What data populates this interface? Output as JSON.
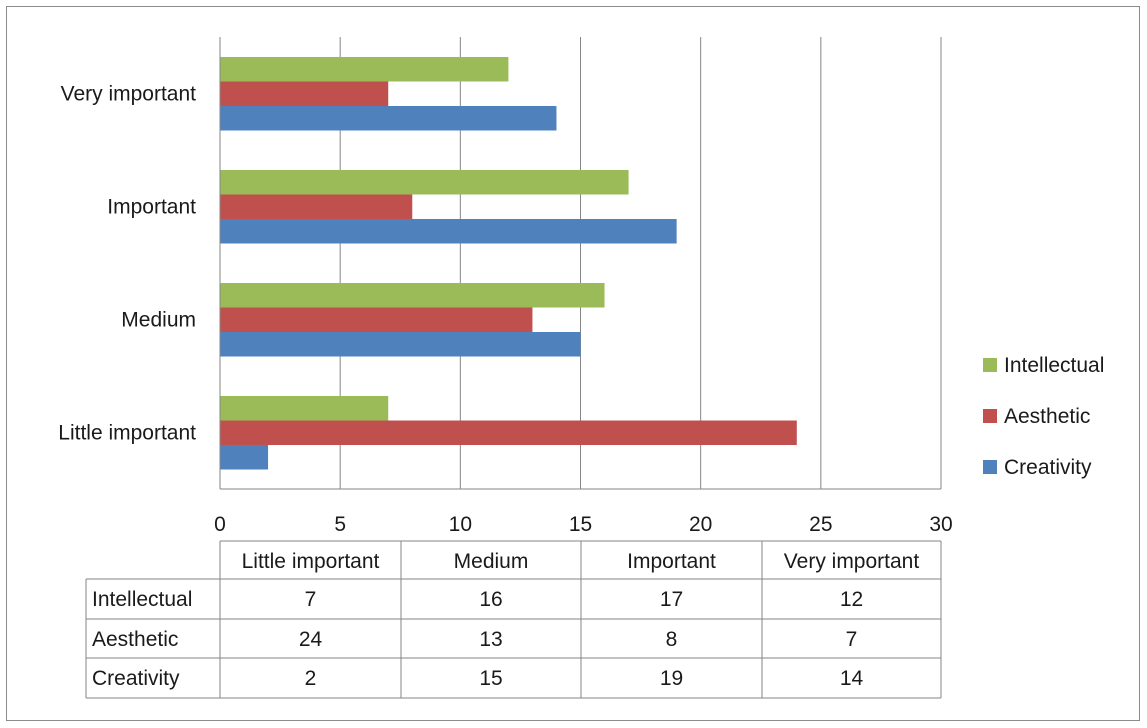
{
  "chart_data": {
    "type": "bar",
    "orientation": "horizontal",
    "categories": [
      "Little important",
      "Medium",
      "Important",
      "Very important"
    ],
    "series": [
      {
        "name": "Intellectual",
        "values": [
          7,
          16,
          17,
          12
        ],
        "color": "#9BBB59"
      },
      {
        "name": "Aesthetic",
        "values": [
          24,
          13,
          8,
          7
        ],
        "color": "#C0504D"
      },
      {
        "name": "Creativity",
        "values": [
          2,
          15,
          19,
          14
        ],
        "color": "#4F81BD"
      }
    ],
    "xlim": [
      0,
      30
    ],
    "xticks": [
      "0",
      "5",
      "10",
      "15",
      "20",
      "25",
      "30"
    ],
    "grid": true,
    "legend_position": "right",
    "data_table": true
  }
}
